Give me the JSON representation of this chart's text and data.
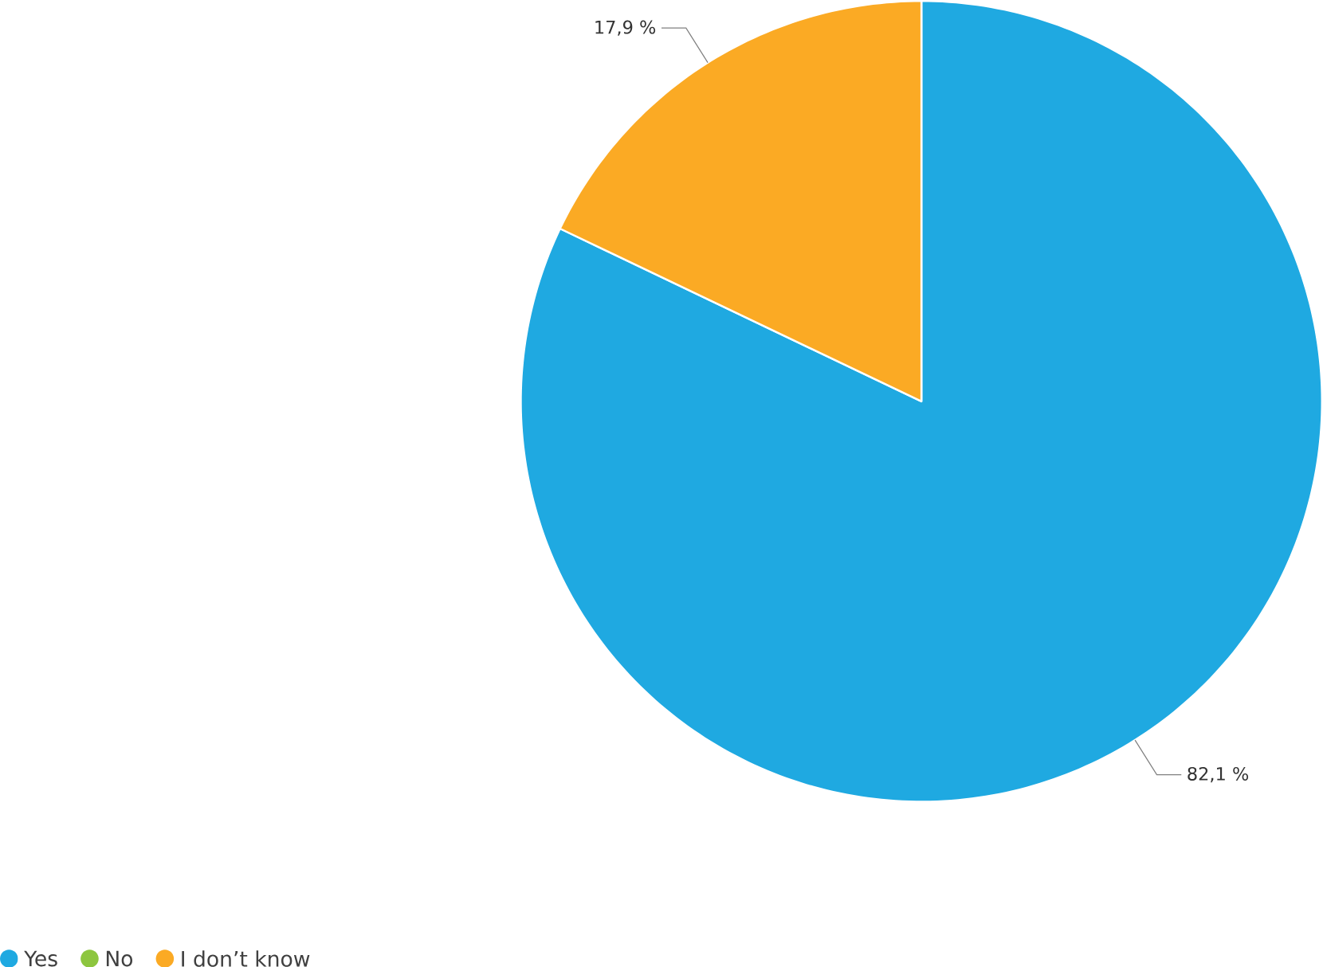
{
  "chart_data": {
    "type": "pie",
    "categories": [
      "Yes",
      "No",
      "I don’t know"
    ],
    "values": [
      82.1,
      0,
      17.9
    ],
    "colors": [
      "#1fa9e1",
      "#8dc63f",
      "#fbaa24"
    ],
    "value_labels": [
      "82,1 %",
      null,
      "17,9 %"
    ],
    "legend": "bottom left"
  }
}
